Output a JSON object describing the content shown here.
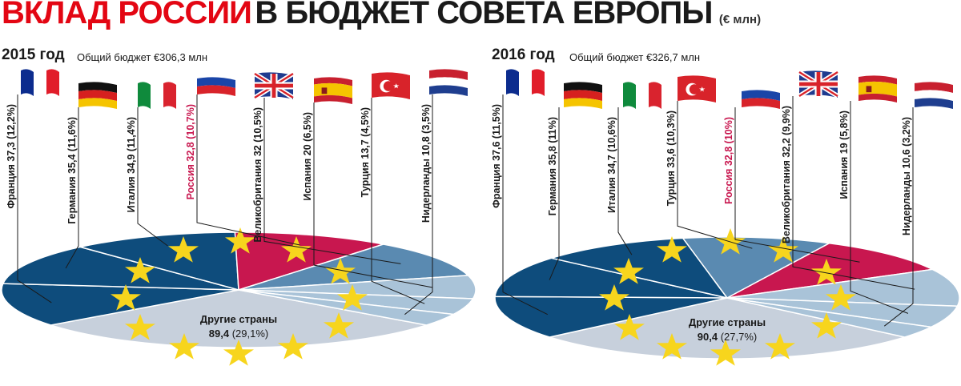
{
  "header": {
    "title_main": "ВКЛАД РОССИИ",
    "title_rest": "В БЮДЖЕТ СОВЕТА ЕВРОПЫ",
    "unit": "(€ млн)"
  },
  "colors": {
    "accent": "#e30613",
    "russia": "#c8174f",
    "other": "#c7d0dc",
    "dark": "#0e4c7c",
    "mid": "#5a8ab1",
    "light": "#a9c3d8"
  },
  "chart_data": [
    {
      "type": "pie",
      "year_label": "2015 год",
      "total_label": "Общий бюджет €306,3 млн",
      "slices": [
        {
          "label": "Франция 37,3 (12,2%)",
          "value": 37.3,
          "percent": 12.2,
          "flag": "france-flag-icon"
        },
        {
          "label": "Германия 35,4 (11,6%)",
          "value": 35.4,
          "percent": 11.6,
          "flag": "germany-flag-icon"
        },
        {
          "label": "Италия 34,9 (11,4%)",
          "value": 34.9,
          "percent": 11.4,
          "flag": "italy-flag-icon"
        },
        {
          "label": "Россия 32,8 (10,7%)",
          "value": 32.8,
          "percent": 10.7,
          "flag": "russia-flag-icon",
          "highlight": true
        },
        {
          "label": "Великобритания 32 (10,5%)",
          "value": 32,
          "percent": 10.5,
          "flag": "uk-flag-icon"
        },
        {
          "label": "Испания 20 (6,5%)",
          "value": 20,
          "percent": 6.5,
          "flag": "spain-flag-icon"
        },
        {
          "label": "Турция 13,7 (4,5%)",
          "value": 13.7,
          "percent": 4.5,
          "flag": "turkey-flag-icon"
        },
        {
          "label": "Нидерланды 10,8 (3,5%)",
          "value": 10.8,
          "percent": 3.5,
          "flag": "netherlands-flag-icon"
        }
      ],
      "other": {
        "label": "Другие страны",
        "value_label": "89,4",
        "pct_label": "(29,1%)",
        "value": 89.4,
        "percent": 29.1
      }
    },
    {
      "type": "pie",
      "year_label": "2016 год",
      "total_label": "Общий бюджет €326,7 млн",
      "slices": [
        {
          "label": "Франция 37,6 (11,5%)",
          "value": 37.6,
          "percent": 11.5,
          "flag": "france-flag-icon"
        },
        {
          "label": "Германия 35,8 (11%)",
          "value": 35.8,
          "percent": 11,
          "flag": "germany-flag-icon"
        },
        {
          "label": "Италия 34,7 (10,6%)",
          "value": 34.7,
          "percent": 10.6,
          "flag": "italy-flag-icon"
        },
        {
          "label": "Турция 33,6 (10,3%)",
          "value": 33.6,
          "percent": 10.3,
          "flag": "turkey-flag-icon"
        },
        {
          "label": "Россия 32,8 (10%)",
          "value": 32.8,
          "percent": 10,
          "flag": "russia-flag-icon",
          "highlight": true
        },
        {
          "label": "Великобритания 32,2 (9,9%)",
          "value": 32.2,
          "percent": 9.9,
          "flag": "uk-flag-icon"
        },
        {
          "label": "Испания 19 (5,8%)",
          "value": 19,
          "percent": 5.8,
          "flag": "spain-flag-icon"
        },
        {
          "label": "Нидерланды 10,6 (3,2%)",
          "value": 10.6,
          "percent": 3.2,
          "flag": "netherlands-flag-icon"
        }
      ],
      "other": {
        "label": "Другие страны",
        "value_label": "90,4",
        "pct_label": "(27,7%)",
        "value": 90.4,
        "percent": 27.7
      }
    }
  ]
}
